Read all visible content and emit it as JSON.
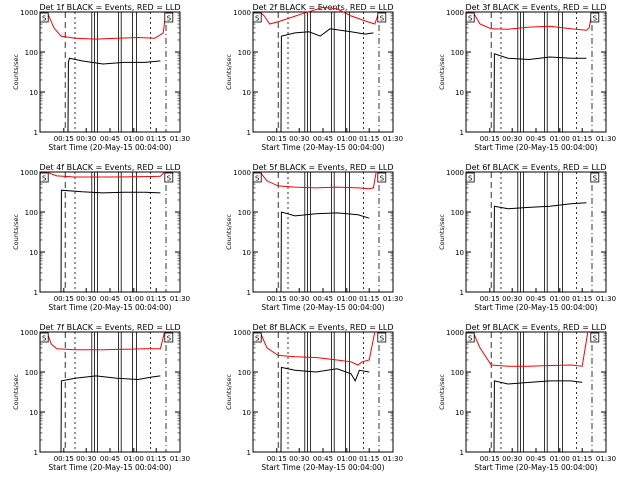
{
  "chart_data": [
    {
      "type": "line",
      "title": "Det 1f BLACK = Events, RED = LLD",
      "xlabel": "Start Time (20-May-15 00:04:00)",
      "ylabel": "Counts/sec",
      "yscale": "log",
      "ylim": [
        1,
        1000
      ],
      "xlim": [
        0,
        100
      ],
      "x_tick_labels": [
        "00:15",
        "00:30",
        "00:45",
        "01:00",
        "01:15",
        "01:30"
      ],
      "y_tick_labels": [
        "1",
        "10",
        "100",
        "1000"
      ],
      "series": [
        {
          "color": "#ff0000",
          "points": [
            [
              5,
              1000
            ],
            [
              10,
              400
            ],
            [
              15,
              250
            ],
            [
              25,
              220
            ],
            [
              40,
              210
            ],
            [
              55,
              220
            ],
            [
              70,
              230
            ],
            [
              82,
              220
            ],
            [
              88,
              300
            ],
            [
              90,
              1000
            ]
          ]
        },
        {
          "color": "#000000",
          "points": [
            [
              20,
              1
            ],
            [
              20.3,
              55
            ],
            [
              21,
              70
            ],
            [
              30,
              60
            ],
            [
              45,
              50
            ],
            [
              60,
              55
            ],
            [
              75,
              55
            ],
            [
              86,
              60
            ]
          ]
        }
      ],
      "markers": [
        "S",
        "S"
      ]
    },
    {
      "type": "line",
      "title": "Det 2f BLACK = Events, RED = LLD",
      "xlabel": "Start Time (20-May-15 00:04:00)",
      "ylabel": "Counts/sec",
      "yscale": "log",
      "ylim": [
        1,
        1000
      ],
      "xlim": [
        0,
        100
      ],
      "x_tick_labels": [
        "00:15",
        "00:30",
        "00:45",
        "01:00",
        "01:15",
        "01:30"
      ],
      "y_tick_labels": [
        "1",
        "10",
        "100",
        "1000"
      ],
      "series": [
        {
          "color": "#ff0000",
          "points": [
            [
              5,
              1000
            ],
            [
              8,
              800
            ],
            [
              12,
              500
            ],
            [
              20,
              600
            ],
            [
              35,
              900
            ],
            [
              50,
              1300
            ],
            [
              60,
              1200
            ],
            [
              70,
              800
            ],
            [
              80,
              600
            ],
            [
              87,
              500
            ],
            [
              90,
              1000
            ]
          ]
        },
        {
          "color": "#000000",
          "points": [
            [
              20,
              1
            ],
            [
              20.3,
              250
            ],
            [
              30,
              300
            ],
            [
              40,
              320
            ],
            [
              48,
              250
            ],
            [
              55,
              380
            ],
            [
              70,
              320
            ],
            [
              80,
              280
            ],
            [
              86,
              300
            ]
          ]
        }
      ],
      "markers": [
        "S",
        "S"
      ]
    },
    {
      "type": "line",
      "title": "Det 3f BLACK = Events, RED = LLD",
      "xlabel": "Start Time (20-May-15 00:04:00)",
      "ylabel": "Counts/sec",
      "yscale": "log",
      "ylim": [
        1,
        1000
      ],
      "xlim": [
        0,
        100
      ],
      "x_tick_labels": [
        "00:15",
        "00:30",
        "00:45",
        "01:00",
        "01:15",
        "01:30"
      ],
      "y_tick_labels": [
        "1",
        "10",
        "100",
        "1000"
      ],
      "series": [
        {
          "color": "#ff0000",
          "points": [
            [
              5,
              1000
            ],
            [
              10,
              500
            ],
            [
              18,
              380
            ],
            [
              30,
              370
            ],
            [
              45,
              420
            ],
            [
              60,
              440
            ],
            [
              75,
              380
            ],
            [
              86,
              350
            ],
            [
              88,
              400
            ],
            [
              90,
              1000
            ]
          ]
        },
        {
          "color": "#000000",
          "points": [
            [
              20,
              1
            ],
            [
              20.3,
              90
            ],
            [
              30,
              70
            ],
            [
              45,
              65
            ],
            [
              60,
              75
            ],
            [
              75,
              70
            ],
            [
              86,
              70
            ]
          ]
        }
      ],
      "markers": [
        "S",
        "S"
      ]
    },
    {
      "type": "line",
      "title": "Det 4f BLACK = Events, RED = LLD",
      "xlabel": "Start Time (20-May-15 00:04:00)",
      "ylabel": "Counts/sec",
      "yscale": "log",
      "ylim": [
        1,
        1000
      ],
      "xlim": [
        0,
        100
      ],
      "x_tick_labels": [
        "00:15",
        "00:30",
        "00:45",
        "01:00",
        "01:15",
        "01:30"
      ],
      "y_tick_labels": [
        "1",
        "10",
        "100",
        "1000"
      ],
      "series": [
        {
          "color": "#ff0000",
          "points": [
            [
              5,
              1000
            ],
            [
              8,
              900
            ],
            [
              12,
              800
            ],
            [
              25,
              750
            ],
            [
              45,
              750
            ],
            [
              65,
              760
            ],
            [
              80,
              770
            ],
            [
              86,
              780
            ],
            [
              89,
              1000
            ]
          ]
        },
        {
          "color": "#000000",
          "points": [
            [
              15,
              1
            ],
            [
              15.3,
              350
            ],
            [
              30,
              320
            ],
            [
              45,
              300
            ],
            [
              60,
              310
            ],
            [
              75,
              310
            ],
            [
              86,
              300
            ]
          ]
        }
      ],
      "markers": [
        "S",
        "S"
      ]
    },
    {
      "type": "line",
      "title": "Det 5f BLACK = Events, RED = LLD",
      "xlabel": "Start Time (20-May-15 00:04:00)",
      "ylabel": "Counts/sec",
      "yscale": "log",
      "ylim": [
        1,
        1000
      ],
      "xlim": [
        0,
        100
      ],
      "x_tick_labels": [
        "00:15",
        "00:30",
        "00:45",
        "01:00",
        "01:15",
        "01:30"
      ],
      "y_tick_labels": [
        "1",
        "10",
        "100",
        "1000"
      ],
      "series": [
        {
          "color": "#ff0000",
          "points": [
            [
              5,
              1000
            ],
            [
              10,
              600
            ],
            [
              18,
              450
            ],
            [
              30,
              420
            ],
            [
              45,
              400
            ],
            [
              60,
              420
            ],
            [
              75,
              400
            ],
            [
              83,
              380
            ],
            [
              86,
              400
            ],
            [
              88,
              1000
            ]
          ]
        },
        {
          "color": "#000000",
          "points": [
            [
              20,
              1
            ],
            [
              20.3,
              100
            ],
            [
              30,
              80
            ],
            [
              45,
              90
            ],
            [
              60,
              95
            ],
            [
              75,
              85
            ],
            [
              83,
              70
            ]
          ]
        }
      ],
      "markers": [
        "S",
        "S"
      ]
    },
    {
      "type": "line",
      "title": "Det 6f BLACK = Events, RED = LLD",
      "xlabel": "Start Time (20-May-15 00:04:00)",
      "ylabel": "Counts/sec",
      "yscale": "log",
      "ylim": [
        1,
        1000
      ],
      "xlim": [
        0,
        100
      ],
      "x_tick_labels": [
        "00:15",
        "00:30",
        "00:45",
        "01:00",
        "01:15",
        "01:30"
      ],
      "y_tick_labels": [
        "1",
        "10",
        "100",
        "1000"
      ],
      "series": [
        {
          "color": "#000000",
          "points": [
            [
              20,
              1
            ],
            [
              20.3,
              140
            ],
            [
              30,
              120
            ],
            [
              45,
              130
            ],
            [
              60,
              140
            ],
            [
              75,
              160
            ],
            [
              86,
              170
            ]
          ]
        }
      ],
      "markers": [
        "S",
        "S"
      ]
    },
    {
      "type": "line",
      "title": "Det 7f BLACK = Events, RED = LLD",
      "xlabel": "Start Time (20-May-15 00:04:00)",
      "ylabel": "Counts/sec",
      "yscale": "log",
      "ylim": [
        1,
        1000
      ],
      "xlim": [
        0,
        100
      ],
      "x_tick_labels": [
        "00:15",
        "00:30",
        "00:45",
        "01:00",
        "01:15",
        "01:30"
      ],
      "y_tick_labels": [
        "1",
        "10",
        "100",
        "1000"
      ],
      "series": [
        {
          "color": "#ff0000",
          "points": [
            [
              5,
              1000
            ],
            [
              8,
              500
            ],
            [
              12,
              380
            ],
            [
              25,
              360
            ],
            [
              45,
              360
            ],
            [
              60,
              370
            ],
            [
              75,
              380
            ],
            [
              86,
              380
            ],
            [
              89,
              1000
            ]
          ]
        },
        {
          "color": "#000000",
          "points": [
            [
              15,
              1
            ],
            [
              15.3,
              60
            ],
            [
              25,
              70
            ],
            [
              40,
              80
            ],
            [
              55,
              70
            ],
            [
              70,
              65
            ],
            [
              80,
              75
            ],
            [
              86,
              80
            ]
          ]
        }
      ],
      "markers": [
        "S",
        "S"
      ]
    },
    {
      "type": "line",
      "title": "Det 8f BLACK = Events, RED = LLD",
      "xlabel": "Start Time (20-May-15 00:04:00)",
      "ylabel": "Counts/sec",
      "yscale": "log",
      "ylim": [
        1,
        1000
      ],
      "xlim": [
        0,
        100
      ],
      "x_tick_labels": [
        "00:15",
        "00:30",
        "00:45",
        "01:00",
        "01:15",
        "01:30"
      ],
      "y_tick_labels": [
        "1",
        "10",
        "100",
        "1000"
      ],
      "series": [
        {
          "color": "#ff0000",
          "points": [
            [
              5,
              1000
            ],
            [
              10,
              400
            ],
            [
              18,
              260
            ],
            [
              30,
              240
            ],
            [
              45,
              230
            ],
            [
              60,
              200
            ],
            [
              70,
              180
            ],
            [
              75,
              150
            ],
            [
              78,
              180
            ],
            [
              83,
              200
            ],
            [
              87,
              1000
            ]
          ]
        },
        {
          "color": "#000000",
          "points": [
            [
              20,
              1
            ],
            [
              20.3,
              130
            ],
            [
              30,
              110
            ],
            [
              45,
              100
            ],
            [
              60,
              120
            ],
            [
              70,
              90
            ],
            [
              73,
              60
            ],
            [
              76,
              110
            ],
            [
              83,
              100
            ]
          ]
        }
      ],
      "markers": [
        "S",
        "S"
      ]
    },
    {
      "type": "line",
      "title": "Det 9f BLACK = Events, RED = LLD",
      "xlabel": "Start Time (20-May-15 00:04:00)",
      "ylabel": "Counts/sec",
      "yscale": "log",
      "ylim": [
        1,
        1000
      ],
      "xlim": [
        0,
        100
      ],
      "x_tick_labels": [
        "00:15",
        "00:30",
        "00:45",
        "01:00",
        "01:15",
        "01:30"
      ],
      "y_tick_labels": [
        "1",
        "10",
        "100",
        "1000"
      ],
      "series": [
        {
          "color": "#ff0000",
          "points": [
            [
              5,
              1000
            ],
            [
              10,
              400
            ],
            [
              18,
              150
            ],
            [
              30,
              140
            ],
            [
              45,
              140
            ],
            [
              60,
              145
            ],
            [
              75,
              150
            ],
            [
              83,
              140
            ],
            [
              87,
              1000
            ]
          ]
        },
        {
          "color": "#000000",
          "points": [
            [
              20,
              1
            ],
            [
              20.3,
              60
            ],
            [
              30,
              50
            ],
            [
              45,
              55
            ],
            [
              60,
              60
            ],
            [
              75,
              60
            ],
            [
              83,
              55
            ]
          ]
        }
      ],
      "markers": [
        "S",
        "S"
      ]
    }
  ]
}
